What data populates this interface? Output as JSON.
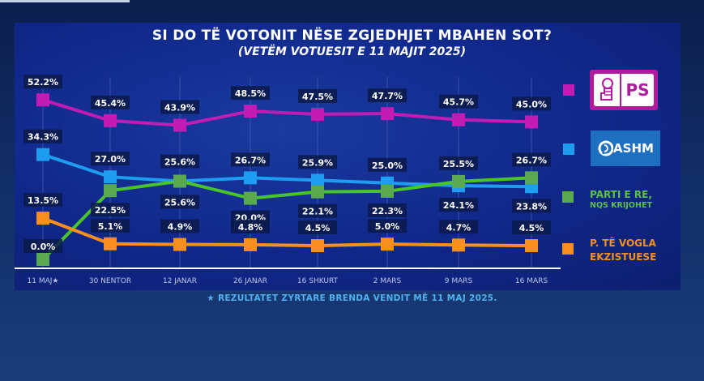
{
  "chart_data": {
    "type": "line",
    "title": "SI DO TË VOTONIT NËSE ZGJEDHJET MBAHEN SOT?",
    "subtitle": "(VETËM VOTUESIT E 11 MAJIT 2025)",
    "xlabel": "",
    "ylabel": "",
    "ylim": [
      0,
      55
    ],
    "grid": "vertical",
    "legend_position": "right",
    "categories": [
      "11 MAJ★",
      "30 NENTOR",
      "12 JANAR",
      "26 JANAR",
      "16 SHKURT",
      "2 MARS",
      "9 MARS",
      "16 MARS"
    ],
    "series": [
      {
        "name": "PS",
        "color": "#c21cb4",
        "values": [
          52.2,
          45.4,
          43.9,
          48.5,
          47.5,
          47.7,
          45.7,
          45.0
        ],
        "labels": [
          "52.2%",
          "45.4%",
          "43.9%",
          "48.5%",
          "47.5%",
          "47.7%",
          "45.7%",
          "45.0%"
        ]
      },
      {
        "name": "PDASHM",
        "color": "#1e9cf0",
        "values": [
          34.3,
          27.0,
          25.6,
          26.7,
          25.9,
          25.0,
          24.1,
          23.8
        ],
        "labels": [
          "34.3%",
          "27.0%",
          "25.6%",
          "26.7%",
          "25.9%",
          "25.0%",
          "24.1%",
          "23.8%"
        ]
      },
      {
        "name": "PARTI E RE, NQS KRIJOHET",
        "color": "#5aa84f",
        "line_color": "#49c52a",
        "values": [
          0.0,
          22.5,
          25.6,
          20.0,
          22.1,
          22.3,
          25.5,
          26.7
        ],
        "labels": [
          "0.0%",
          "22.5%",
          "25.6%",
          "20.0%",
          "22.1%",
          "22.3%",
          "25.5%",
          "26.7%"
        ]
      },
      {
        "name": "P. TË VOGLA EKZISTUESE",
        "color": "#f7901e",
        "values": [
          13.5,
          5.1,
          4.9,
          4.8,
          4.5,
          5.0,
          4.7,
          4.5
        ],
        "labels": [
          "13.5%",
          "5.1%",
          "4.9%",
          "4.8%",
          "4.5%",
          "5.0%",
          "4.7%",
          "4.5%"
        ]
      }
    ],
    "footnote": "★ REZULTATET ZYRTARE BRENDA VENDIT MË 11 MAJ 2025."
  },
  "legend": {
    "ps": {
      "text": "PS",
      "color": "#c21cb4"
    },
    "ashm": {
      "text": "ASHM",
      "color": "#1e9cf0"
    },
    "new_party": {
      "line1": "PARTI E RE,",
      "line2": "NQS KRIJOHET",
      "color": "#5ec04a"
    },
    "small_parties": {
      "line1": "P. TË VOGLA",
      "line2": "EKZISTUESE",
      "color": "#f7901e"
    }
  }
}
